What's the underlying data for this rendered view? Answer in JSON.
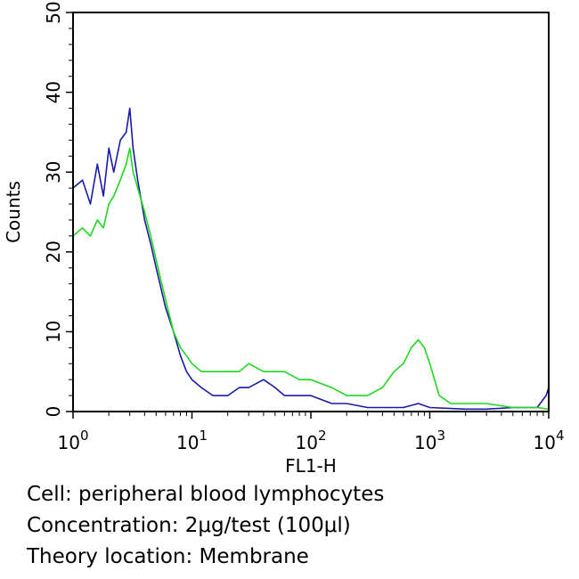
{
  "chart_data": {
    "type": "line",
    "xlabel": "FL1-H",
    "ylabel": "Counts",
    "xscale": "log",
    "xlim": [
      1,
      10000
    ],
    "ylim": [
      0,
      50
    ],
    "x_tick_labels": [
      "10^0",
      "10^1",
      "10^2",
      "10^3",
      "10^4"
    ],
    "y_tick_labels": [
      "0",
      "10",
      "20",
      "30",
      "40",
      "50"
    ],
    "grid": false,
    "legend": "none",
    "series": [
      {
        "color": "#1a1aa8",
        "x": [
          1,
          1.2,
          1.4,
          1.6,
          1.8,
          2.0,
          2.2,
          2.5,
          2.8,
          3.0,
          3.2,
          3.5,
          4.0,
          4.5,
          5.0,
          6.0,
          7.0,
          8.0,
          9.0,
          10,
          12,
          15,
          20,
          25,
          30,
          40,
          50,
          60,
          80,
          100,
          150,
          200,
          300,
          400,
          600,
          800,
          1000,
          2000,
          3000,
          5000,
          8000,
          9500,
          10000
        ],
        "y": [
          28,
          29,
          26,
          31,
          27,
          33,
          30,
          34,
          35,
          38,
          33,
          29,
          24,
          21,
          18,
          13,
          10,
          7,
          5,
          4,
          3,
          2,
          2,
          3,
          3,
          4,
          3,
          2,
          2,
          2,
          1,
          1,
          0.5,
          0.5,
          0.5,
          1,
          0.5,
          0.3,
          0.3,
          0.5,
          0.5,
          2,
          3
        ]
      },
      {
        "color": "#1ed81e",
        "x": [
          1,
          1.2,
          1.4,
          1.6,
          1.8,
          2.0,
          2.2,
          2.5,
          2.8,
          3.0,
          3.2,
          3.5,
          4.0,
          4.5,
          5.0,
          6.0,
          7.0,
          8.0,
          9.0,
          10,
          12,
          15,
          20,
          25,
          30,
          40,
          50,
          60,
          80,
          100,
          150,
          200,
          300,
          400,
          500,
          600,
          700,
          800,
          900,
          1000,
          1200,
          1500,
          2000,
          3000,
          5000,
          8000,
          10000
        ],
        "y": [
          22,
          23,
          22,
          24,
          23,
          26,
          27,
          29,
          31,
          33,
          30,
          28,
          25,
          22,
          19,
          14,
          10,
          8,
          7,
          6,
          5,
          5,
          5,
          5,
          6,
          5,
          5,
          5,
          4,
          4,
          3,
          2,
          2,
          3,
          5,
          6,
          8,
          9,
          8,
          6,
          2,
          1,
          1,
          1,
          0.5,
          0.5,
          0.3
        ]
      }
    ]
  },
  "caption": {
    "line1": "Cell: peripheral blood lymphocytes",
    "line2": "Concentration: 2μg/test (100μl)",
    "line3": "Theory location: Membrane"
  }
}
